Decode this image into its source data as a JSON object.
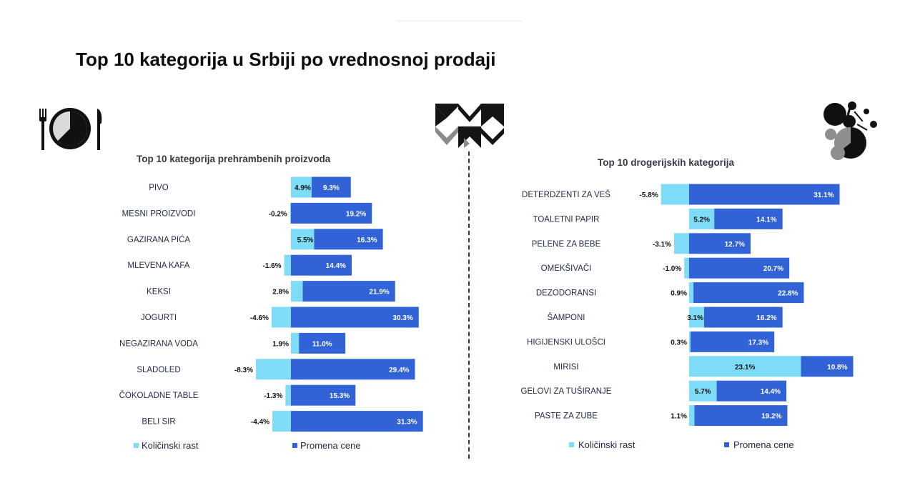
{
  "page": {
    "title": "Top 10 kategorija u Srbiji po vrednosnoj prodaji"
  },
  "colors": {
    "volume": "#7fdcf8",
    "price": "#3263d6",
    "divider": "#2b3556"
  },
  "icons": {
    "left": "plate-fork-knife-icon",
    "center": "chevron-grid-logo-icon",
    "right": "molecule-bubbles-icon"
  },
  "chart_data": [
    {
      "type": "bar",
      "title": "Top 10 kategorija prehrambenih proizvoda",
      "stacked": "diverging-horizontal",
      "categories": [
        "PIVO",
        "MESNI PROIZVODI",
        "GAZIRANA PIĆA",
        "MLEVENA KAFA",
        "KEKSI",
        "JOGURTI",
        "NEGAZIRANA VODA",
        "SLADOLED",
        "ČOKOLADNE TABLE",
        "BELI SIR"
      ],
      "series": [
        {
          "name": "Količinski rast",
          "values": [
            4.9,
            -0.2,
            5.5,
            -1.6,
            2.8,
            -4.6,
            1.9,
            -8.3,
            -1.3,
            -4.4
          ],
          "labels": [
            "4.9%",
            "-0.2%",
            "5.5%",
            "-1.6%",
            "2.8%",
            "-4.6%",
            "1.9%",
            "-8.3%",
            "-1.3%",
            "-4.4%"
          ]
        },
        {
          "name": "Promena cene",
          "values": [
            9.3,
            19.2,
            16.3,
            14.4,
            21.9,
            30.3,
            11.0,
            29.4,
            15.3,
            31.3
          ],
          "labels": [
            "9.3%",
            "19.2%",
            "16.3%",
            "14.4%",
            "21.9%",
            "30.3%",
            "11.0%",
            "29.4%",
            "15.3%",
            "31.3%"
          ]
        }
      ],
      "legend": [
        "Količinski rast",
        "Promena cene"
      ]
    },
    {
      "type": "bar",
      "title": "Top 10 drogerijskih kategorija",
      "stacked": "diverging-horizontal",
      "categories": [
        "DETERDZENTI ZA VEŠ",
        "TOALETNI PAPIR",
        "PELENE ZA BEBE",
        "OMEKŠIVAČI",
        "DEZODORANSI",
        "ŠAMPONI",
        "HIGIJENSKI ULOŠCI",
        "MIRISI",
        "GELOVI ZA TUŠIRANJE",
        "PASTE ZA ZUBE"
      ],
      "series": [
        {
          "name": "Količinski rast",
          "values": [
            -5.8,
            5.2,
            -3.1,
            -1.0,
            0.9,
            3.1,
            0.3,
            23.1,
            5.7,
            1.1
          ],
          "labels": [
            "-5.8%",
            "5.2%",
            "-3.1%",
            "-1.0%",
            "0.9%",
            "3.1%",
            "0.3%",
            "23.1%",
            "5.7%",
            "1.1%"
          ]
        },
        {
          "name": "Promena cene",
          "values": [
            31.1,
            14.1,
            12.7,
            20.7,
            22.8,
            16.2,
            17.3,
            10.8,
            14.4,
            19.2
          ],
          "labels": [
            "31.1%",
            "14.1%",
            "12.7%",
            "20.7%",
            "22.8%",
            "16.2%",
            "17.3%",
            "10.8%",
            "14.4%",
            "19.2%"
          ]
        }
      ],
      "legend": [
        "Količinski rast",
        "Promena cene"
      ]
    }
  ]
}
